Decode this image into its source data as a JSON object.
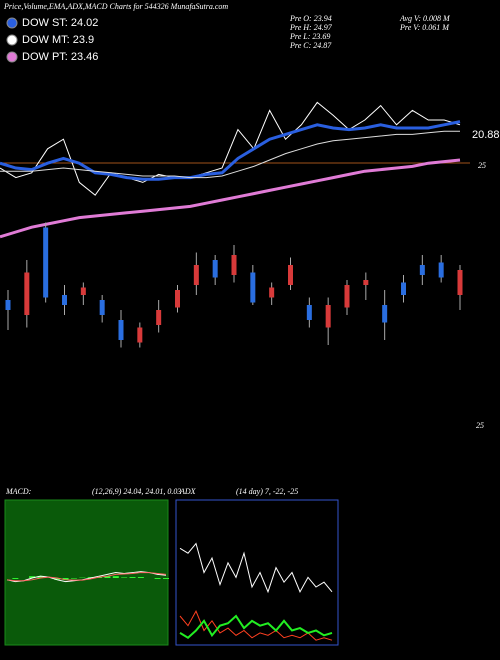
{
  "header": {
    "title": "Price,Volume,EMA,ADX,MACD Charts for 544326  MunafaSutra.com"
  },
  "legend": [
    {
      "label": "DOW ST: 24.02",
      "color": "#2a5fe0"
    },
    {
      "label": "DOW MT: 23.9",
      "color": "#ffffff"
    },
    {
      "label": "DOW PT: 23.46",
      "color": "#e07bd6"
    }
  ],
  "stats_left": [
    "Pre   O: 23.94",
    "Pre   H: 24.97",
    "Pre   L: 23.69",
    "Pre   C: 24.87"
  ],
  "stats_right": [
    "Avg  V: 0.008  M",
    "Pre   V: 0.061 M"
  ],
  "chart_data": [
    {
      "type": "line",
      "ylim": [
        17,
        27
      ],
      "annotations": [
        "20.88",
        "25"
      ],
      "series": [
        {
          "color": "#ffffff",
          "width": 1,
          "values": [
            21.5,
            20.9,
            21.2,
            22.7,
            23.3,
            20.6,
            19.8,
            21.2,
            20.9,
            20.6,
            21.1,
            20.9,
            20.9,
            21.2,
            21.5,
            23.9,
            22.7,
            25.1,
            23.3,
            24.2,
            25.6,
            24.8,
            23.9,
            24.5,
            25.4,
            24.2,
            25.1,
            24.5,
            24.5,
            24.2
          ]
        },
        {
          "color": "#2a5fe0",
          "width": 3,
          "values": [
            21.8,
            21.5,
            21.4,
            21.8,
            22.1,
            21.8,
            21.2,
            21.1,
            20.9,
            20.8,
            20.8,
            20.9,
            20.9,
            21.1,
            21.2,
            22.1,
            22.7,
            23.3,
            23.6,
            23.9,
            24.2,
            24.0,
            23.9,
            24.0,
            24.2,
            24.0,
            24.0,
            24.0,
            24.2,
            24.4
          ]
        },
        {
          "color": "#dddddd",
          "width": 1,
          "values": [
            21.3,
            21.3,
            21.3,
            21.4,
            21.5,
            21.4,
            21.3,
            21.2,
            21.1,
            21.0,
            21.0,
            21.0,
            20.9,
            20.9,
            21.0,
            21.3,
            21.6,
            22.0,
            22.4,
            22.7,
            23.0,
            23.2,
            23.3,
            23.4,
            23.5,
            23.6,
            23.6,
            23.7,
            23.8,
            23.8
          ]
        },
        {
          "color": "#e07bd6",
          "width": 3,
          "values": [
            17.2,
            17.5,
            17.8,
            18.0,
            18.2,
            18.4,
            18.5,
            18.6,
            18.7,
            18.8,
            18.9,
            19.0,
            19.1,
            19.3,
            19.5,
            19.7,
            19.9,
            20.1,
            20.3,
            20.5,
            20.7,
            20.9,
            21.1,
            21.3,
            21.4,
            21.5,
            21.6,
            21.8,
            21.9,
            22.0
          ]
        }
      ]
    },
    {
      "type": "candlestick",
      "ylim": [
        21,
        27
      ],
      "up_color": "#2a6ee0",
      "down_color": "#d83a3a",
      "annotations": [
        "25"
      ],
      "open": [
        23.0,
        24.5,
        23.5,
        23.2,
        23.9,
        22.8,
        21.8,
        22.3,
        23.0,
        23.8,
        24.8,
        24.3,
        25.2,
        23.3,
        23.9,
        24.8,
        22.6,
        23.2,
        24.0,
        24.2,
        22.5,
        23.6,
        24.4,
        24.3,
        24.6
      ],
      "close": [
        23.4,
        22.8,
        26.3,
        23.6,
        23.6,
        23.4,
        22.6,
        21.7,
        22.4,
        23.1,
        24.0,
        25.0,
        24.4,
        24.5,
        23.5,
        24.0,
        23.2,
        22.3,
        23.1,
        24.0,
        23.2,
        24.1,
        24.8,
        24.9,
        23.6
      ],
      "high": [
        23.8,
        25.0,
        26.5,
        24.0,
        24.1,
        23.6,
        23.0,
        22.5,
        23.4,
        24.0,
        25.3,
        25.2,
        25.6,
        24.8,
        24.1,
        25.1,
        23.5,
        23.5,
        24.2,
        24.5,
        23.8,
        24.4,
        25.2,
        25.2,
        24.8
      ],
      "low": [
        22.2,
        22.3,
        23.3,
        22.8,
        23.2,
        22.5,
        21.5,
        21.5,
        22.1,
        22.9,
        23.6,
        24.0,
        24.1,
        23.2,
        23.2,
        23.8,
        22.3,
        21.6,
        22.8,
        23.4,
        21.8,
        23.3,
        24.0,
        24.1,
        23.0
      ]
    },
    {
      "type": "macd",
      "title": "MACD:",
      "subtitle": "(12,26,9) 24.04, 24.01, 0.03",
      "ylim": [
        -2,
        2
      ],
      "series": [
        {
          "color": "#ffffff",
          "values": [
            -0.1,
            -0.2,
            -0.15,
            0.0,
            0.1,
            0.05,
            -0.1,
            -0.2,
            -0.15,
            -0.1,
            0.0,
            0.1,
            0.2,
            0.3,
            0.25,
            0.3,
            0.35,
            0.3,
            0.2,
            0.15
          ]
        },
        {
          "color": "#ff6060",
          "values": [
            -0.1,
            -0.15,
            -0.15,
            -0.1,
            0.0,
            0.05,
            0.0,
            -0.1,
            -0.12,
            -0.12,
            -0.05,
            0.05,
            0.1,
            0.2,
            0.22,
            0.25,
            0.3,
            0.3,
            0.25,
            0.2
          ]
        }
      ],
      "histogram": {
        "color": "#33ff33",
        "values": [
          0.0,
          -0.05,
          0.0,
          0.1,
          0.1,
          0.0,
          -0.1,
          -0.1,
          -0.03,
          0.02,
          0.05,
          0.05,
          0.1,
          0.1,
          0.03,
          0.05,
          0.05,
          0.0,
          -0.05,
          -0.05
        ]
      }
    },
    {
      "type": "adx",
      "title": "ADX",
      "subtitle": "(14  day) 7, -22, -25",
      "ylim": [
        0,
        60
      ],
      "series": [
        {
          "color": "#ffffff",
          "values": [
            40,
            38,
            42,
            30,
            36,
            25,
            34,
            28,
            38,
            24,
            30,
            22,
            32,
            26,
            30,
            22,
            28,
            24,
            26,
            22
          ]
        },
        {
          "color": "#ff4020",
          "values": [
            12,
            8,
            14,
            6,
            10,
            5,
            7,
            4,
            6,
            3,
            5,
            4,
            6,
            3,
            4,
            3,
            5,
            2,
            3,
            2
          ]
        },
        {
          "color": "#22ee22",
          "values": [
            5,
            3,
            6,
            10,
            4,
            8,
            9,
            12,
            7,
            10,
            8,
            9,
            6,
            10,
            6,
            7,
            5,
            6,
            4,
            5
          ]
        }
      ]
    }
  ]
}
